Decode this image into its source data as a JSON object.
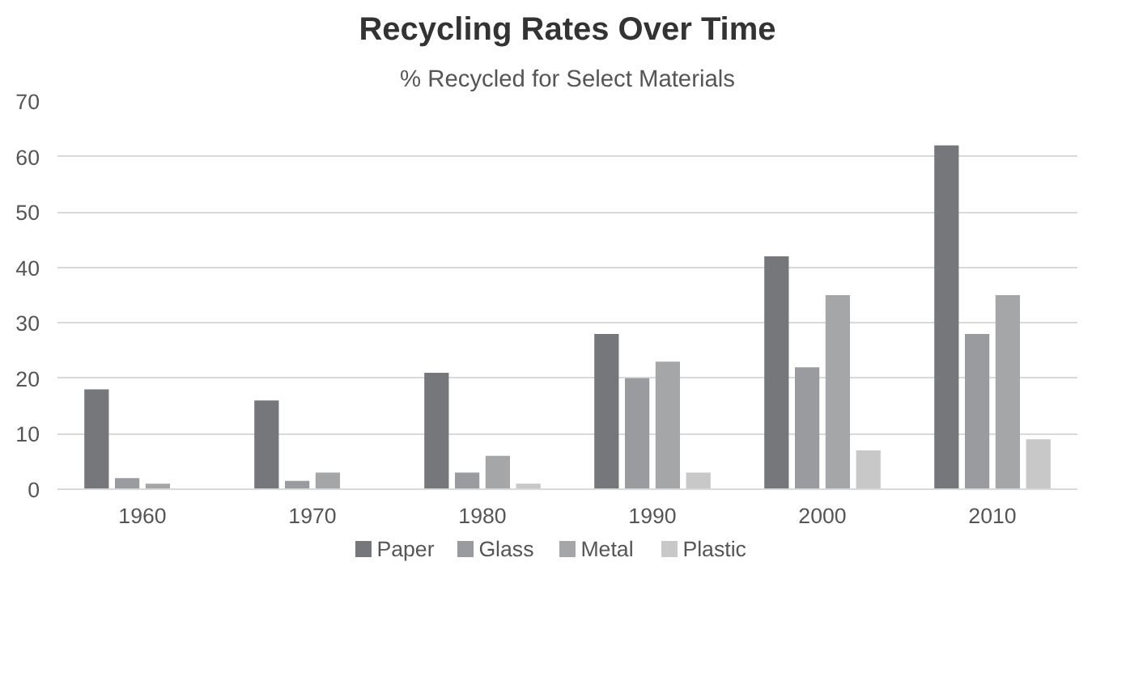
{
  "chart_data": {
    "type": "bar",
    "title": "Recycling Rates Over Time",
    "subtitle": "% Recycled for Select Materials",
    "categories": [
      "1960",
      "1970",
      "1980",
      "1990",
      "2000",
      "2010"
    ],
    "series": [
      {
        "name": "Paper",
        "color": "#76777b",
        "values": [
          18,
          16,
          21,
          28,
          42,
          62
        ]
      },
      {
        "name": "Glass",
        "color": "#9a9b9f",
        "values": [
          2,
          1.5,
          3,
          20,
          22,
          28
        ]
      },
      {
        "name": "Metal",
        "color": "#a5a6a8",
        "values": [
          1,
          3,
          6,
          23,
          35,
          35
        ]
      },
      {
        "name": "Plastic",
        "color": "#c8c8c9",
        "values": [
          null,
          null,
          1,
          3,
          7,
          9
        ]
      }
    ],
    "ylim": [
      0,
      70
    ],
    "yticks": [
      0,
      10,
      20,
      30,
      40,
      50,
      60,
      70
    ],
    "grid": "y",
    "legend": "bottom"
  }
}
